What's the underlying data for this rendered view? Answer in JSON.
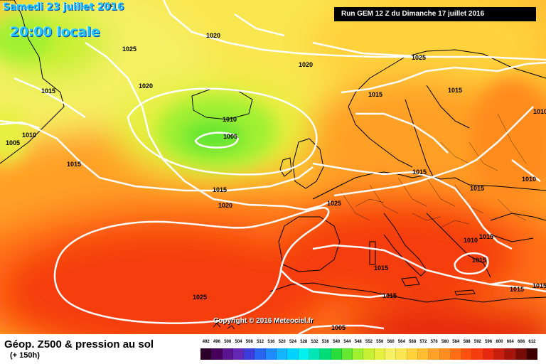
{
  "header": {
    "date": "Samedi 23 juillet 2016",
    "time": "20:00 locale",
    "run": "Run GEM 12 Z du Dimanche 17 juillet 2016"
  },
  "watermark": "Copyright © 2016 Meteociel.fr",
  "footer": {
    "title": "Géop. Z500 & pression au sol",
    "range": "(+ 150h)"
  },
  "legend": {
    "values": [
      "492",
      "496",
      "500",
      "504",
      "508",
      "512",
      "516",
      "520",
      "524",
      "528",
      "532",
      "536",
      "540",
      "544",
      "548",
      "552",
      "556",
      "560",
      "564",
      "568",
      "572",
      "576",
      "580",
      "584",
      "588",
      "592",
      "596",
      "600",
      "604",
      "608",
      "612"
    ],
    "colors": [
      "#2a0028",
      "#46005a",
      "#5a1490",
      "#6428b4",
      "#3c3cdc",
      "#2864f0",
      "#1e8cff",
      "#14b4ff",
      "#00d2ff",
      "#00f0f0",
      "#00e6b4",
      "#00dc78",
      "#28dc3c",
      "#64e632",
      "#a0f032",
      "#c8f032",
      "#e6f040",
      "#f5f064",
      "#fae650",
      "#ffd23c",
      "#ffbe32",
      "#ffa028",
      "#ff8c1e",
      "#ff6e14",
      "#ff500f",
      "#f53c0f",
      "#e6280f",
      "#c81e0f",
      "#a5140a",
      "#780a05",
      "#3c0000"
    ]
  },
  "isobar_labels": [
    "1025",
    "1020",
    "1015",
    "1020",
    "1015",
    "1010",
    "1005",
    "1010",
    "1005",
    "1015",
    "1015",
    "1020",
    "1025",
    "1020",
    "1015",
    "1025",
    "1015",
    "1015",
    "1010",
    "1015",
    "1015",
    "1015",
    "1015",
    "1015",
    "1010",
    "1005",
    "1025",
    "1010",
    "1010",
    "1015"
  ],
  "colors": {
    "heat": "#f23a14",
    "land_coast": "#000000",
    "isobar": "#ffffff",
    "title_cyan": "#1fc8ff"
  }
}
